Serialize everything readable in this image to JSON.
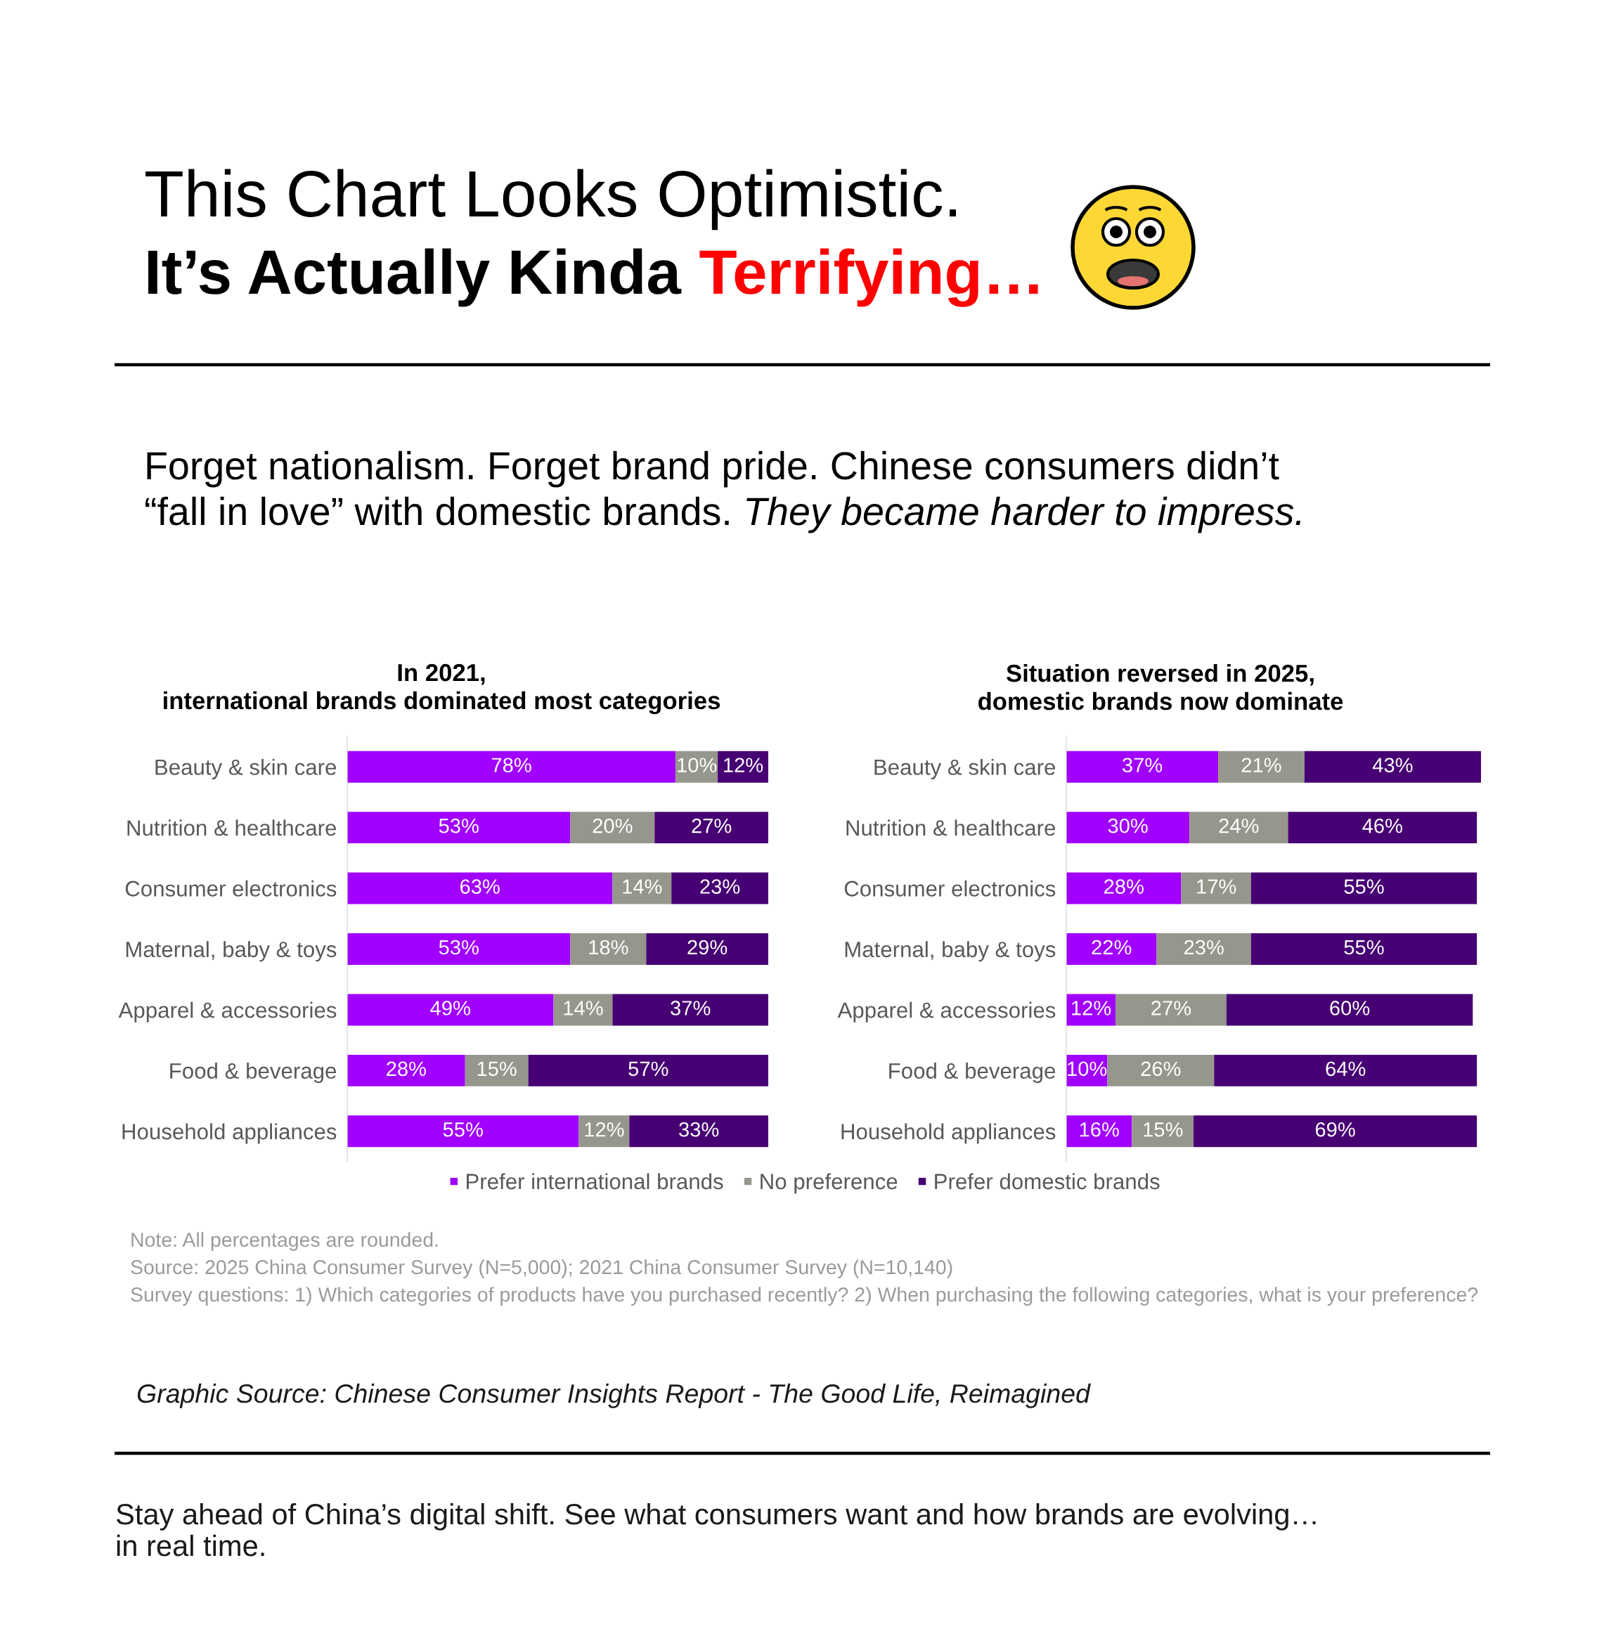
{
  "chart_data": [
    {
      "type": "other",
      "title": "This Chart Looks Optimistic.",
      "subtitle": "It’s Actually Kinda Terrifying…",
      "color": "#ff0000",
      "annotations": [
        "Forget nationalism. Forget brand pride. Chinese consumers didn’t",
        "“fall in love” with domestic brands.",
        "They became harder to impress."
      ]
    },
    {
      "type": "bar",
      "orientation": "horizontal",
      "stacked": true,
      "title": "In 2021,\ninternational brands dominated most categories",
      "categories": [
        "Beauty & skin care",
        "Nutrition & healthcare",
        "Consumer electronics",
        "Maternal, baby & toys",
        "Apparel & accessories",
        "Food & beverage",
        "Household appliances"
      ],
      "series": [
        {
          "name": "Prefer international brands",
          "color": "#a100ff",
          "values": [
            78,
            53,
            63,
            53,
            49,
            28,
            55
          ],
          "value_labels": [
            "78%",
            "53%",
            "63%",
            "53%",
            "49%",
            "28%",
            "55%"
          ]
        },
        {
          "name": "No preference",
          "color": "#96968c",
          "values": [
            10,
            20,
            14,
            18,
            14,
            15,
            12
          ],
          "value_labels": [
            "10%",
            "20%",
            "14%",
            "18%",
            "14%",
            "15%",
            "12%"
          ]
        },
        {
          "name": "Prefer domestic brands",
          "color": "#460073",
          "values": [
            12,
            27,
            23,
            29,
            37,
            57,
            33
          ],
          "value_labels": [
            "12%",
            "27%",
            "23%",
            "29%",
            "37%",
            "57%",
            "33%"
          ]
        }
      ],
      "legend": "bottom",
      "tick_labels": "y"
    },
    {
      "type": "bar",
      "orientation": "horizontal",
      "stacked": true,
      "title": "Situation reversed in 2025,\ndomestic brands now dominate",
      "categories": [
        "Beauty & skin care",
        "Nutrition & healthcare",
        "Consumer electronics",
        "Maternal, baby & toys",
        "Apparel & accessories",
        "Food & beverage",
        "Household appliances"
      ],
      "series": [
        {
          "name": "Prefer international brands",
          "color": "#a100ff",
          "values": [
            37,
            30,
            28,
            22,
            12,
            10,
            16
          ],
          "value_labels": [
            "37%",
            "30%",
            "28%",
            "22%",
            "12%",
            "10%",
            "16%"
          ]
        },
        {
          "name": "No preference",
          "color": "#96968c",
          "values": [
            21,
            24,
            17,
            23,
            27,
            26,
            15
          ],
          "value_labels": [
            "21%",
            "24%",
            "17%",
            "23%",
            "27%",
            "26%",
            "15%"
          ]
        },
        {
          "name": "Prefer domestic brands",
          "color": "#460073",
          "values": [
            43,
            46,
            55,
            55,
            60,
            64,
            69
          ],
          "value_labels": [
            "43%",
            "46%",
            "55%",
            "55%",
            "60%",
            "64%",
            "69%"
          ]
        }
      ],
      "tick_labels": "y"
    },
    {
      "type": "other",
      "annotations": [
        "Note: All percentages are rounded.",
        "Source: 2025 China Consumer Survey (N=5,000); 2021 China Consumer Survey (N=10,140)",
        "Survey questions: 1) Which categories of products have you purchased recently? 2) When purchasing the following categories, what is your preference?",
        "Graphic Source: Chinese Consumer Insights Report - The Good Life, Reimagined",
        "Stay ahead of China’s digital shift. See what consumers want and how brands are evolving…\nin real time."
      ]
    }
  ]
}
